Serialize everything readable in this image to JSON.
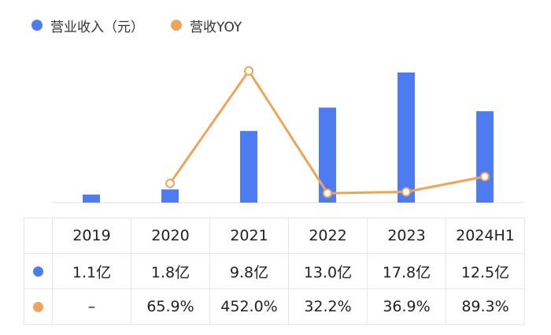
{
  "legend": {
    "revenue": {
      "label": "营业收入（元）",
      "color": "#4d7cf2"
    },
    "yoy": {
      "label": "营收YOY",
      "color": "#f0a45a"
    }
  },
  "chart_data": {
    "type": "bar+line",
    "categories": [
      "2019",
      "2020",
      "2021",
      "2022",
      "2023",
      "2024H1"
    ],
    "series": [
      {
        "name": "营业收入（元）",
        "type": "bar",
        "values": [
          1.1,
          1.8,
          9.8,
          13.0,
          17.8,
          12.5
        ],
        "color": "#4d7cf2"
      },
      {
        "name": "营收YOY",
        "type": "line",
        "values": [
          null,
          65.9,
          452.0,
          32.2,
          36.9,
          89.3
        ],
        "color": "#f0a45a"
      }
    ],
    "grid": false,
    "legend_position": "top-left"
  },
  "table": {
    "header": [
      "2019",
      "2020",
      "2021",
      "2022",
      "2023",
      "2024H1"
    ],
    "revenue_row": [
      "1.1亿",
      "1.8亿",
      "9.8亿",
      "13.0亿",
      "17.8亿",
      "12.5亿"
    ],
    "yoy_row": [
      "–",
      "65.9%",
      "452.0%",
      "32.2%",
      "36.9%",
      "89.3%"
    ]
  }
}
